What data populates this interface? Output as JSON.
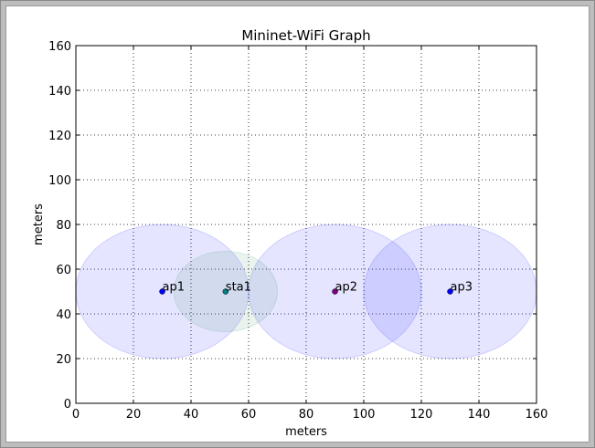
{
  "chart_data": {
    "type": "scatter",
    "title": "Mininet-WiFi Graph",
    "xlabel": "meters",
    "ylabel": "meters",
    "xlim": [
      0,
      160
    ],
    "ylim": [
      0,
      160
    ],
    "xticks": [
      0,
      20,
      40,
      60,
      80,
      100,
      120,
      140,
      160
    ],
    "yticks": [
      0,
      20,
      40,
      60,
      80,
      100,
      120,
      140,
      160
    ],
    "grid": true,
    "nodes": [
      {
        "label": "ap1",
        "x": 30,
        "y": 50,
        "range": 30,
        "color": "#0000ff",
        "range_color": "#0000ff"
      },
      {
        "label": "sta1",
        "x": 52,
        "y": 50,
        "range": 18,
        "color": "#008080",
        "range_color": "#2e8b57"
      },
      {
        "label": "ap2",
        "x": 90,
        "y": 50,
        "range": 30,
        "color": "#800080",
        "range_color": "#0000ff"
      },
      {
        "label": "ap3",
        "x": 130,
        "y": 50,
        "range": 30,
        "color": "#0000ff",
        "range_color": "#0000ff"
      }
    ]
  }
}
